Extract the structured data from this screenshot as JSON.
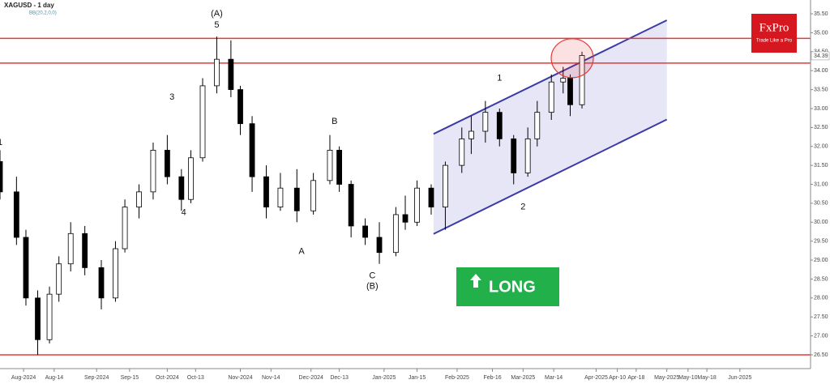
{
  "chart_data": {
    "type": "candlestick",
    "title": "XAGUSD - 1 day",
    "subtitle": "BB(20,2,0,0)",
    "brand": "FxPro",
    "tagline": "Trade Like a Pro",
    "signal": "LONG",
    "x": [
      "2024-07-22",
      "2024-07-29",
      "2024-08-02",
      "2024-08-07",
      "2024-08-12",
      "2024-08-16",
      "2024-08-21",
      "2024-08-27",
      "2024-09-03",
      "2024-09-09",
      "2024-09-13",
      "2024-09-19",
      "2024-09-25",
      "2024-10-01",
      "2024-10-07",
      "2024-10-11",
      "2024-10-16",
      "2024-10-22",
      "2024-10-28",
      "2024-11-01",
      "2024-11-06",
      "2024-11-12",
      "2024-11-18",
      "2024-11-25",
      "2024-12-02",
      "2024-12-09",
      "2024-12-13",
      "2024-12-18",
      "2024-12-24",
      "2024-12-30",
      "2025-01-06",
      "2025-01-10",
      "2025-01-15",
      "2025-01-21",
      "2025-01-27",
      "2025-02-03",
      "2025-02-07",
      "2025-02-13",
      "2025-02-19",
      "2025-02-25",
      "2025-03-03",
      "2025-03-07",
      "2025-03-13",
      "2025-03-18",
      "2025-03-21",
      "2025-03-26"
    ],
    "open": [
      31.6,
      30.8,
      29.6,
      28.0,
      26.9,
      28.1,
      28.9,
      29.7,
      28.8,
      28.0,
      29.3,
      30.4,
      30.8,
      31.9,
      31.2,
      30.6,
      31.7,
      33.6,
      34.3,
      33.5,
      32.6,
      31.2,
      30.4,
      30.9,
      30.3,
      31.1,
      31.9,
      31.0,
      29.9,
      29.6,
      29.2,
      30.2,
      30.0,
      30.9,
      30.4,
      31.5,
      32.2,
      32.4,
      32.9,
      32.2,
      31.3,
      32.2,
      32.9,
      33.7,
      33.8,
      33.1
    ],
    "high": [
      31.9,
      31.2,
      29.8,
      28.2,
      28.3,
      29.1,
      30.0,
      29.9,
      29.0,
      29.5,
      30.6,
      31.0,
      32.1,
      32.3,
      31.4,
      31.9,
      33.8,
      34.9,
      34.8,
      33.6,
      32.8,
      31.5,
      31.3,
      31.4,
      31.3,
      32.3,
      32.0,
      31.1,
      30.1,
      30.0,
      30.4,
      30.7,
      31.1,
      31.0,
      31.6,
      32.5,
      32.8,
      33.2,
      33.0,
      32.3,
      32.5,
      33.2,
      33.9,
      34.1,
      33.9,
      34.5
    ],
    "low": [
      30.6,
      29.4,
      27.8,
      26.5,
      26.8,
      27.9,
      28.7,
      28.6,
      27.7,
      27.9,
      29.2,
      30.1,
      30.6,
      31.0,
      30.3,
      30.5,
      31.6,
      33.4,
      33.3,
      32.3,
      30.8,
      30.1,
      30.3,
      30.0,
      30.2,
      31.0,
      30.8,
      29.6,
      29.4,
      28.9,
      29.1,
      29.8,
      29.9,
      30.2,
      29.8,
      31.3,
      31.8,
      32.1,
      32.0,
      31.0,
      31.2,
      32.0,
      32.7,
      33.4,
      32.8,
      33.0
    ],
    "close": [
      30.8,
      29.6,
      28.0,
      26.9,
      28.1,
      28.9,
      29.7,
      28.8,
      28.0,
      29.3,
      30.4,
      30.8,
      31.9,
      31.2,
      30.6,
      31.7,
      33.6,
      34.3,
      33.5,
      32.6,
      31.2,
      30.4,
      30.9,
      30.3,
      31.1,
      31.9,
      31.0,
      29.9,
      29.6,
      29.2,
      30.2,
      30.0,
      30.9,
      30.4,
      31.5,
      32.2,
      32.4,
      32.9,
      32.2,
      31.3,
      32.2,
      32.9,
      33.7,
      33.8,
      33.1,
      34.4
    ],
    "xlim": [
      "2024-07-22",
      "2025-07-01"
    ],
    "xticks": [
      {
        "value": "2024-08-01",
        "label": "Aug-2024"
      },
      {
        "value": "2024-08-14",
        "label": "Aug-14"
      },
      {
        "value": "2024-09-01",
        "label": "Sep-2024"
      },
      {
        "value": "2024-09-15",
        "label": "Sep-15"
      },
      {
        "value": "2024-10-01",
        "label": "Oct-2024"
      },
      {
        "value": "2024-10-13",
        "label": "Oct-13"
      },
      {
        "value": "2024-11-01",
        "label": "Nov-2024"
      },
      {
        "value": "2024-11-14",
        "label": "Nov-14"
      },
      {
        "value": "2024-12-01",
        "label": "Dec-2024"
      },
      {
        "value": "2024-12-13",
        "label": "Dec-13"
      },
      {
        "value": "2025-01-01",
        "label": "Jan-2025"
      },
      {
        "value": "2025-01-15",
        "label": "Jan-15"
      },
      {
        "value": "2025-02-01",
        "label": "Feb-2025"
      },
      {
        "value": "2025-02-16",
        "label": "Feb-16"
      },
      {
        "value": "2025-03-01",
        "label": "Mar-2025"
      },
      {
        "value": "2025-03-14",
        "label": "Mar-14"
      },
      {
        "value": "2025-04-01",
        "label": "Apr-2025"
      },
      {
        "value": "2025-04-10",
        "label": "Apr-10"
      },
      {
        "value": "2025-04-18",
        "label": "Apr-18"
      },
      {
        "value": "2025-05-01",
        "label": "May-2025"
      },
      {
        "value": "2025-05-10",
        "label": "May-10"
      },
      {
        "value": "2025-05-18",
        "label": "May-18"
      },
      {
        "value": "2025-06-01",
        "label": "Jun-2025"
      }
    ],
    "ylim": [
      26.2,
      35.8
    ],
    "yticks": [
      {
        "value": 26.5,
        "label": "26.50"
      },
      {
        "value": 27,
        "label": "27.00"
      },
      {
        "value": 27.5,
        "label": "27.50"
      },
      {
        "value": 28,
        "label": "28.00"
      },
      {
        "value": 28.5,
        "label": "28.50"
      },
      {
        "value": 29,
        "label": "29.00"
      },
      {
        "value": 29.5,
        "label": "29.50"
      },
      {
        "value": 30,
        "label": "30.00"
      },
      {
        "value": 30.5,
        "label": "30.50"
      },
      {
        "value": 31,
        "label": "31.00"
      },
      {
        "value": 31.5,
        "label": "31.50"
      },
      {
        "value": 32,
        "label": "32.00"
      },
      {
        "value": 32.5,
        "label": "32.50"
      },
      {
        "value": 33,
        "label": "33.00"
      },
      {
        "value": 33.5,
        "label": "33.50"
      },
      {
        "value": 34,
        "label": "34.00"
      },
      {
        "value": 34.5,
        "label": "34.50"
      },
      {
        "value": 35,
        "label": "35.00"
      },
      {
        "value": 35.5,
        "label": "35.50"
      }
    ],
    "last_price": {
      "value": 34.39,
      "label": "34.39"
    },
    "levels": [
      34.85,
      34.2,
      26.5
    ],
    "level_color": "#e53935",
    "channel": {
      "x": [
        "2025-01-22",
        "2025-05-01"
      ],
      "upper": [
        32.33,
        35.33
      ],
      "lower": [
        29.69,
        32.71
      ],
      "color": "#3a3aa8"
    },
    "annotations": [
      {
        "text": "(A)",
        "x": "2024-10-22",
        "y": 35.5
      },
      {
        "text": "5",
        "x": "2024-10-22",
        "y": 35.2
      },
      {
        "text": "3",
        "x": "2024-10-03",
        "y": 33.3
      },
      {
        "text": "4",
        "x": "2024-10-08",
        "y": 30.25
      },
      {
        "text": "1",
        "x": "2024-07-22",
        "y": 32.1
      },
      {
        "text": "A",
        "x": "2024-11-27",
        "y": 29.22
      },
      {
        "text": "B",
        "x": "2024-12-11",
        "y": 32.65
      },
      {
        "text": "C",
        "x": "2024-12-27",
        "y": 28.58
      },
      {
        "text": "(B)",
        "x": "2024-12-27",
        "y": 28.3
      },
      {
        "text": "1",
        "x": "2025-02-19",
        "y": 33.8
      },
      {
        "text": "2",
        "x": "2025-03-01",
        "y": 30.4
      }
    ]
  }
}
